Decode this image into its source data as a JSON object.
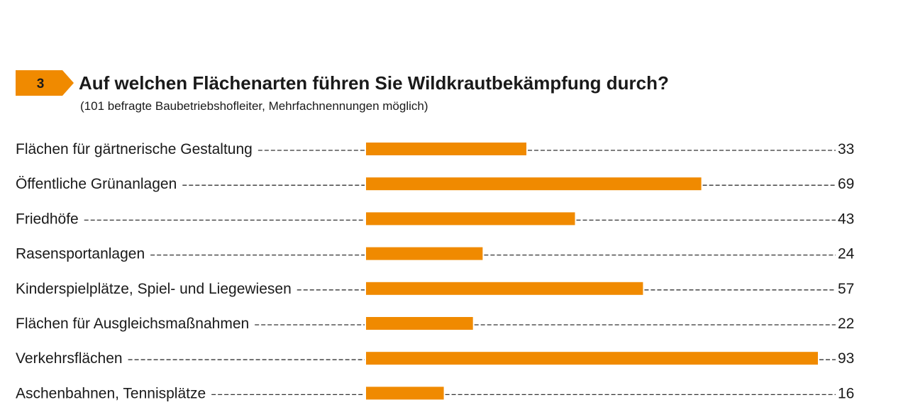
{
  "chart_data": {
    "type": "bar",
    "orientation": "horizontal",
    "figure_number": "3",
    "title": "Auf welchen Flächenarten führen Sie Wildkrautbekämpfung durch?",
    "subtitle": "(101 befragte Baubetriebshofleiter, Mehrfachnennungen möglich)",
    "categories": [
      "Flächen für gärtnerische Gestaltung",
      "Öffentliche Grünanlagen",
      "Friedhöfe",
      "Rasensportanlagen",
      "Kinderspielplätze, Spiel- und Liegewiesen",
      "Flächen für Ausgleichsmaßnahmen",
      "Verkehrsflächen",
      "Aschenbahnen, Tennisplätze"
    ],
    "values": [
      33,
      69,
      43,
      24,
      57,
      22,
      93,
      16
    ],
    "xlim": [
      0,
      95
    ],
    "xlabel": "",
    "ylabel": "",
    "grid": false,
    "legend": "none"
  },
  "colors": {
    "bar": "#f08a00",
    "badge": "#f08a00",
    "badge_text": "#1a1a1a",
    "text": "#1a1a1a",
    "leader": "#333333"
  }
}
